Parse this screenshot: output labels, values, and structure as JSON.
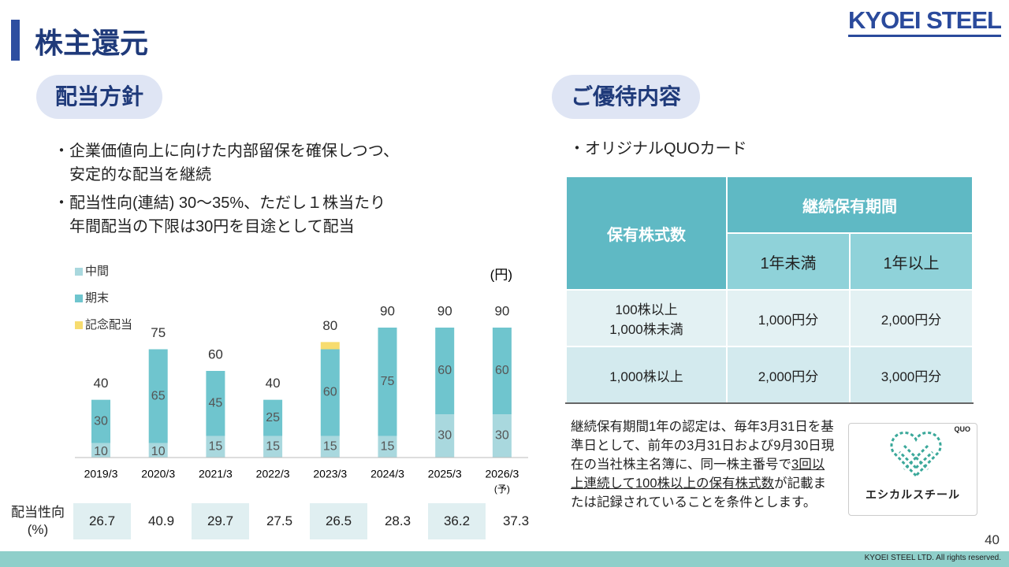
{
  "header": {
    "title": "株主還元",
    "logo": "KYOEI STEEL"
  },
  "left": {
    "heading": "配当方針",
    "bullets": [
      "企業価値向上に向けた内部留保を確保しつつ、\n安定的な配当を継続",
      "配当性向(連結) 30～35%、ただし１株当たり\n年間配当の下限は30円を目途として配当"
    ]
  },
  "chart_data": {
    "type": "stacked_bar",
    "unit": "(円)",
    "categories": [
      "2019/3",
      "2020/3",
      "2021/3",
      "2022/3",
      "2023/3",
      "2024/3",
      "2025/3",
      "2026/3"
    ],
    "category_note": "(予)",
    "series": [
      {
        "name": "中間",
        "color": "#a9d8de",
        "values": [
          10,
          10,
          15,
          15,
          15,
          15,
          30,
          30
        ]
      },
      {
        "name": "期末",
        "color": "#6fc5ce",
        "values": [
          30,
          65,
          45,
          25,
          60,
          75,
          60,
          60
        ]
      },
      {
        "name": "記念配当",
        "color": "#f7dc6f",
        "values": [
          0,
          0,
          0,
          0,
          5,
          0,
          0,
          0
        ]
      }
    ],
    "totals": [
      40,
      75,
      60,
      40,
      80,
      90,
      90,
      90
    ]
  },
  "payout_table": {
    "label": "配当性向",
    "unit": "(%)",
    "values": [
      26.7,
      40.9,
      29.7,
      27.5,
      26.5,
      28.3,
      36.2,
      37.3
    ]
  },
  "right": {
    "heading": "ご優待内容",
    "bullet": "オリジナルQUOカード",
    "table": {
      "col0": "保有株式数",
      "group": "継続保有期間",
      "sub": [
        "1年未満",
        "1年以上"
      ],
      "rows": [
        [
          "100株以上\n1,000株未満",
          "1,000円分",
          "2,000円分"
        ],
        [
          "1,000株以上",
          "2,000円分",
          "3,000円分"
        ]
      ]
    },
    "note": [
      "継続保有期間1年の認定は、毎年3月31日を基準日として、前年の3月31日および9月30日現在の当社株主名簿に、同一株主番号で",
      "3回以上連続して100株以上の保有株式数",
      "が記載または記録されていることを条件とします。"
    ],
    "card": {
      "brand": "QUO",
      "name": "エシカルスチール"
    }
  },
  "footer": {
    "page": "40",
    "copyright": "KYOEI STEEL LTD.  All rights reserved."
  }
}
